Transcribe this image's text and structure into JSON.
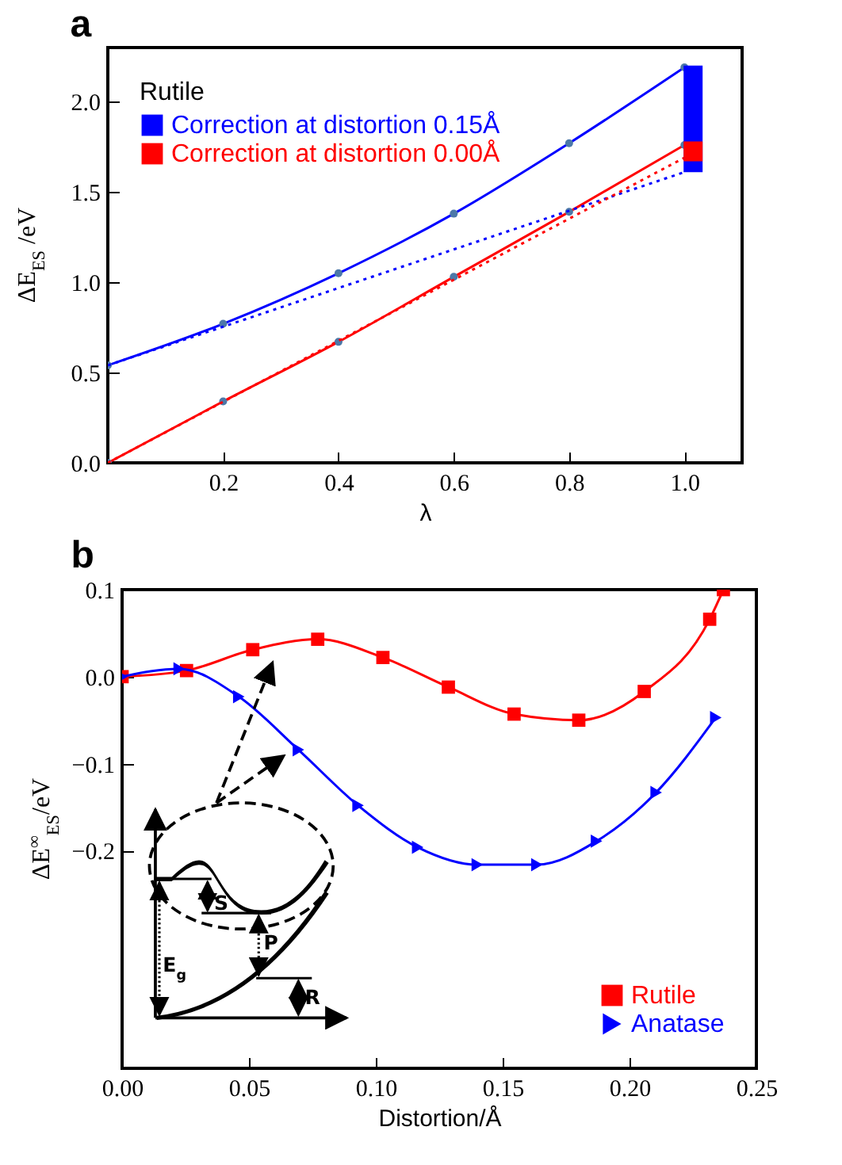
{
  "chart_data": [
    {
      "type": "line",
      "title": "a",
      "xlabel": "λ",
      "ylabel": "ΔE$_{ES}$ /eV",
      "legend_title": "Rutile",
      "legend": "top left",
      "grid": false,
      "xlim": [
        0,
        1.1
      ],
      "xticks": [
        0.2,
        0.4,
        0.6,
        0.8,
        {
          "value": 1,
          "label": "1.0"
        }
      ],
      "ylim": [
        0,
        2.3
      ],
      "yticks": [
        {
          "value": 0,
          "label": "0.0"
        },
        0.5,
        {
          "value": 1,
          "label": "1.0"
        },
        1.5,
        {
          "value": 2,
          "label": "2.0"
        }
      ],
      "series": [
        {
          "color": "#0000ff",
          "marker": "circle",
          "line_style": "solid",
          "x": [
            0,
            0.2,
            0.4,
            0.6,
            0.8,
            1.0
          ],
          "values": [
            0.54,
            0.77,
            1.05,
            1.38,
            1.77,
            2.19
          ]
        },
        {
          "color": "#ff0000",
          "marker": "circle",
          "line_style": "solid",
          "x": [
            0,
            0.2,
            0.4,
            0.6,
            0.8,
            1.0
          ],
          "values": [
            0,
            0.34,
            0.67,
            1.03,
            1.39,
            1.76
          ]
        },
        {
          "color": "#0000ff",
          "marker": "none",
          "line_style": "dotted",
          "x": [
            0,
            1.0
          ],
          "values": [
            0.54,
            1.61
          ]
        },
        {
          "color": "#ff0000",
          "marker": "none",
          "line_style": "dotted",
          "x": [
            0,
            1.0
          ],
          "values": [
            0,
            1.69
          ]
        },
        {
          "type": "bar",
          "name": "Correction at distortion 0.15Å",
          "color": "#0000ff",
          "x": [
            1.015
          ],
          "base": [
            1.61
          ],
          "values": [
            0.59
          ]
        },
        {
          "type": "bar",
          "name": "Correction at distortion 0.00Å",
          "color": "#ff0000",
          "x": [
            1.015
          ],
          "base": [
            1.67
          ],
          "values": [
            0.11
          ]
        }
      ]
    },
    {
      "type": "line",
      "title": "b",
      "xlabel": "Distortion/Å",
      "ylabel": "ΔE$^{∞}$$_{ES}$/eV",
      "legend": "bottom right",
      "grid": false,
      "xlim": [
        0,
        0.25
      ],
      "xticks": [
        {
          "value": 0,
          "label": "0.00"
        },
        {
          "value": 0.05,
          "label": "0.05"
        },
        {
          "value": 0.1,
          "label": "0.10"
        },
        {
          "value": 0.15,
          "label": "0.15"
        },
        {
          "value": 0.2,
          "label": "0.20"
        },
        {
          "value": 0.25,
          "label": "0.25"
        }
      ],
      "ylim": [
        -0.45,
        0.1
      ],
      "yticks": [
        {
          "value": -0.2,
          "label": "−0.2"
        },
        {
          "value": -0.1,
          "label": "−0.1"
        },
        {
          "value": 0,
          "label": "0.0"
        },
        0.1
      ],
      "annotations": [
        "S",
        "P",
        "E$_{g}$",
        "R"
      ],
      "series": [
        {
          "name": "Rutile",
          "color": "#ff0000",
          "marker": "square",
          "line_style": "solid",
          "x": [
            0,
            0.0254,
            0.0515,
            0.0771,
            0.1028,
            0.1286,
            0.1545,
            0.18,
            0.2058,
            0.2316,
            0.237
          ],
          "values": [
            0,
            0.007,
            0.031,
            0.043,
            0.022,
            -0.012,
            -0.043,
            -0.05,
            -0.017,
            0.066,
            0.1
          ]
        },
        {
          "name": "Anatase",
          "color": "#0000ff",
          "marker": "triangle",
          "line_style": "solid",
          "x": [
            0,
            0.0225,
            0.046,
            0.0695,
            0.093,
            0.1165,
            0.14,
            0.1635,
            0.187,
            0.2105,
            0.234
          ],
          "values": [
            0,
            0.009,
            -0.023,
            -0.084,
            -0.148,
            -0.196,
            -0.216,
            -0.216,
            -0.189,
            -0.133,
            -0.047
          ]
        }
      ]
    }
  ]
}
